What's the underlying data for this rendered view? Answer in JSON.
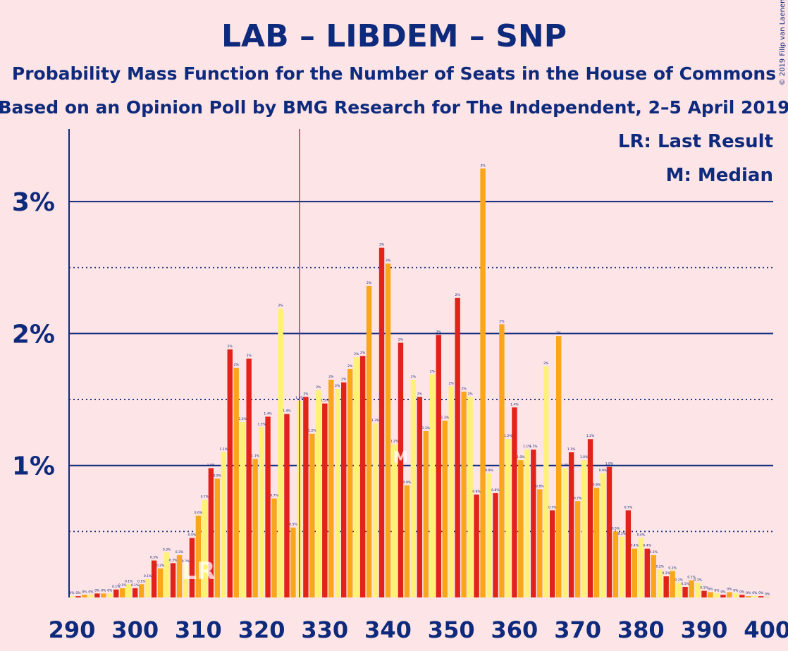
{
  "copyright": "© 2019 Filip van Laenen",
  "chart_data": {
    "type": "bar",
    "title": "LAB – LIBDEM – SNP",
    "subtitle_1": "Probability Mass Function for the Number of Seats in the House of Commons",
    "subtitle_2": "Based on an Opinion Poll by BMG Research for The Independent, 2–5 April 2019",
    "legend": [
      "LR: Last Result",
      "M: Median"
    ],
    "x_tick_labels": [
      "290",
      "300",
      "310",
      "320",
      "330",
      "340",
      "350",
      "360",
      "370",
      "380",
      "390",
      "400"
    ],
    "y_tick_labels": [
      "1%",
      "2%",
      "3%"
    ],
    "xlim": [
      290,
      400
    ],
    "ylim": [
      0,
      3.5
    ],
    "majority_line_x": 326,
    "last_result_x": 310,
    "last_result_marker": "LR",
    "median_x": 342,
    "median_marker": "M",
    "series_colors": [
      "#E2231A",
      "#FAA61A",
      "#FFF176"
    ],
    "x": [
      290,
      291,
      292,
      293,
      294,
      295,
      296,
      297,
      298,
      299,
      300,
      301,
      302,
      303,
      304,
      305,
      306,
      307,
      308,
      309,
      310,
      311,
      312,
      313,
      314,
      315,
      316,
      317,
      318,
      319,
      320,
      321,
      322,
      323,
      324,
      325,
      326,
      327,
      328,
      329,
      330,
      331,
      332,
      333,
      334,
      335,
      336,
      337,
      338,
      339,
      340,
      341,
      342,
      343,
      344,
      345,
      346,
      347,
      348,
      349,
      350,
      351,
      352,
      353,
      354,
      355,
      356,
      357,
      358,
      359,
      360,
      361,
      362,
      363,
      364,
      365,
      366,
      367,
      368,
      369,
      370,
      371,
      372,
      373,
      374,
      375,
      376,
      377,
      378,
      379,
      380,
      381,
      382,
      383,
      384,
      385,
      386,
      387,
      388,
      389,
      390,
      391,
      392,
      393,
      394,
      395,
      396,
      397,
      398,
      399,
      400
    ],
    "values": [
      0.01,
      0.01,
      0.02,
      0.02,
      0.03,
      0.03,
      0.03,
      0.06,
      0.07,
      0.1,
      0.07,
      0.1,
      0.14,
      0.28,
      0.22,
      0.34,
      0.26,
      0.32,
      0.25,
      0.45,
      0.62,
      0.74,
      0.98,
      0.9,
      1.1,
      1.88,
      1.74,
      1.33,
      1.81,
      1.05,
      1.29,
      1.37,
      0.75,
      2.19,
      1.39,
      0.53,
      1.49,
      1.52,
      1.24,
      1.57,
      1.47,
      1.65,
      1.58,
      1.63,
      1.73,
      1.82,
      1.83,
      2.36,
      1.32,
      2.65,
      2.53,
      1.16,
      1.93,
      0.85,
      1.65,
      1.52,
      1.26,
      1.69,
      1.99,
      1.34,
      1.6,
      2.27,
      1.56,
      1.52,
      0.78,
      3.25,
      0.94,
      0.79,
      2.07,
      1.2,
      1.44,
      1.04,
      1.12,
      1.12,
      0.82,
      1.75,
      0.66,
      1.98,
      0.98,
      1.1,
      0.73,
      1.04,
      1.2,
      0.83,
      0.94,
      0.99,
      0.5,
      0.46,
      0.66,
      0.37,
      0.45,
      0.37,
      0.32,
      0.21,
      0.16,
      0.2,
      0.11,
      0.08,
      0.13,
      0.11,
      0.05,
      0.04,
      0.03,
      0.02,
      0.04,
      0.03,
      0.02,
      0.01,
      0.01,
      0.01,
      0
    ],
    "data_labels": [
      "0%",
      "0%",
      "0%",
      "0%",
      "0%",
      "0%",
      "0%",
      "0.1%",
      "0.1%",
      "0.1%",
      "0.1%",
      "0.1%",
      "0.1%",
      "0.3%",
      "0.2%",
      "0.3%",
      "0.3%",
      "0.3%",
      "0.3%",
      "0.5%",
      "0.6%",
      "0.7%",
      "1.0%",
      "0.9%",
      "1.1%",
      "2%",
      "2%",
      "1.3%",
      "2%",
      "1.1%",
      "1.3%",
      "1.4%",
      "0.7%",
      "2%",
      "1.4%",
      "0.5%",
      "1.5%",
      "2%",
      "1.2%",
      "2%",
      "1.5%",
      "2%",
      "2%",
      "2%",
      "2%",
      "2%",
      "2%",
      "2%",
      "1.3%",
      "3%",
      "3%",
      "1.2%",
      "2%",
      "0.9%",
      "2%",
      "2%",
      "1.3%",
      "2%",
      "2%",
      "1.3%",
      "2%",
      "2%",
      "2%",
      "2%",
      "0.8%",
      "3%",
      "0.9%",
      "0.8%",
      "2%",
      "1.2%",
      "1.4%",
      "1.0%",
      "1.1%",
      "1.1%",
      "0.8%",
      "2%",
      "0.7%",
      "2%",
      "1.0%",
      "1.1%",
      "0.7%",
      "1.0%",
      "1.2%",
      "0.8%",
      "0.9%",
      "1.0%",
      "0.5%",
      "0.5%",
      "0.7%",
      "0.4%",
      "0.4%",
      "0.4%",
      "0.3%",
      "0.2%",
      "0.2%",
      "0.2%",
      "0.1%",
      "0.1%",
      "0.1%",
      "0.1%",
      "0.1%",
      "0%",
      "0%",
      "0%",
      "0%",
      "0%",
      "0%",
      "0%",
      "0%",
      "0%",
      "0%"
    ]
  }
}
